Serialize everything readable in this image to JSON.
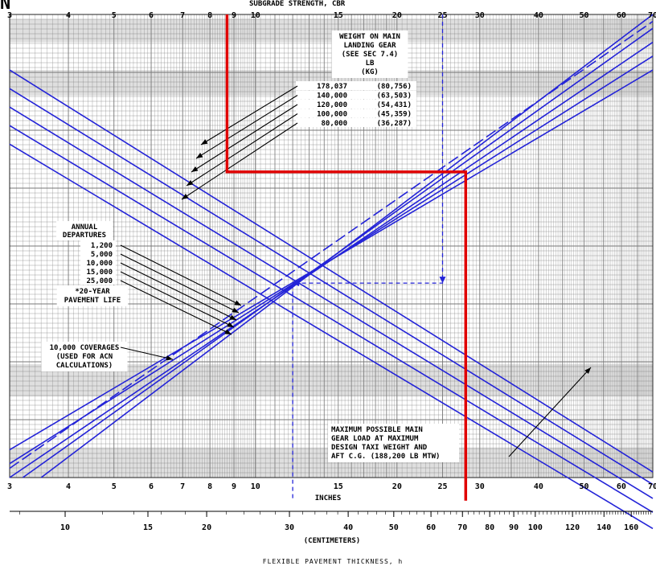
{
  "chart_data": {
    "type": "line",
    "xscale": "log",
    "top_header_text": "SUBGRADE STRENGTH, CBR",
    "inch_ticks": [
      "3",
      "4",
      "5",
      "6",
      "7",
      "8",
      "9",
      "10",
      "15",
      "20",
      "25",
      "30",
      "40",
      "50",
      "60",
      "70"
    ],
    "inch_tick_values": [
      3,
      4,
      5,
      6,
      7,
      8,
      9,
      10,
      15,
      20,
      25,
      30,
      40,
      50,
      60,
      70
    ],
    "cm_ticks": [
      "10",
      "15",
      "20",
      "30",
      "40",
      "50",
      "60",
      "70",
      "80",
      "90",
      "100",
      "120",
      "140",
      "160"
    ],
    "cm_tick_values": [
      10,
      15,
      20,
      30,
      40,
      50,
      60,
      70,
      80,
      90,
      100,
      120,
      140,
      160
    ],
    "xlabel_inches": "INCHES",
    "xlabel_cm": "(CENTIMETERS)",
    "xlabel_main": "FLEXIBLE PAVEMENT THICKNESS, h",
    "weight_legend": {
      "title_lines": [
        "WEIGHT ON MAIN",
        "LANDING GEAR",
        "(SEE SEC 7.4)",
        "LB",
        "(KG)"
      ],
      "items": [
        {
          "lb": "178,037",
          "kg": "(80,756)"
        },
        {
          "lb": "140,000",
          "kg": "(63,503)"
        },
        {
          "lb": "120,000",
          "kg": "(54,431)"
        },
        {
          "lb": "100,000",
          "kg": "(45,359)"
        },
        {
          "lb": "80,000",
          "kg": "(36,287)"
        }
      ]
    },
    "departures_legend": {
      "title_lines": [
        "ANNUAL",
        "DEPARTURES"
      ],
      "items": [
        "1,200",
        "5,000",
        "10,000",
        "15,000",
        "25,000"
      ],
      "note_lines": [
        "*20-YEAR",
        "PAVEMENT LIFE"
      ]
    },
    "coverage_label_lines": [
      "10,000 COVERAGES",
      "(USED FOR ACN",
      "CALCULATIONS)"
    ],
    "max_load_note_lines": [
      "MAXIMUM POSSIBLE MAIN",
      "GEAR LOAD AT MAXIMUM",
      "DESIGN TAXI WEIGHT AND",
      "AFT C.G. (188,200 LB MTW)"
    ],
    "weight_series": [
      {
        "x": [
          3,
          70
        ],
        "y": [
          0.88,
          0.012
        ]
      },
      {
        "x": [
          3,
          70
        ],
        "y": [
          0.84,
          -0.015
        ]
      },
      {
        "x": [
          3,
          70
        ],
        "y": [
          0.8,
          -0.045
        ]
      },
      {
        "x": [
          3,
          70
        ],
        "y": [
          0.76,
          -0.075
        ]
      },
      {
        "x": [
          3,
          70
        ],
        "y": [
          0.72,
          -0.11
        ]
      }
    ],
    "departure_series": [
      {
        "x": [
          3.5,
          70
        ],
        "y": [
          0.0,
          1.0
        ]
      },
      {
        "x": [
          3.2,
          70
        ],
        "y": [
          0.0,
          0.97
        ]
      },
      {
        "x": [
          3.0,
          70
        ],
        "y": [
          0.0,
          0.94
        ]
      },
      {
        "x": [
          3.0,
          70
        ],
        "y": [
          0.03,
          0.91
        ]
      },
      {
        "x": [
          3.0,
          70
        ],
        "y": [
          0.06,
          0.88
        ]
      }
    ],
    "coverage_series": {
      "x": [
        3,
        70
      ],
      "y": [
        0.02,
        0.985
      ]
    },
    "example_dashed_path": [
      [
        25,
        1.0
      ],
      [
        25,
        0.42
      ],
      [
        12,
        0.42
      ],
      [
        12,
        -0.05
      ]
    ],
    "highlight_path": [
      [
        8.7,
        1.0
      ],
      [
        8.7,
        0.66
      ],
      [
        28,
        0.66
      ],
      [
        28,
        -0.05
      ]
    ],
    "colors": {
      "curves": "#2323d8",
      "highlight": "#e00000",
      "grid": "#777777",
      "band": "#c4c4c4"
    }
  }
}
